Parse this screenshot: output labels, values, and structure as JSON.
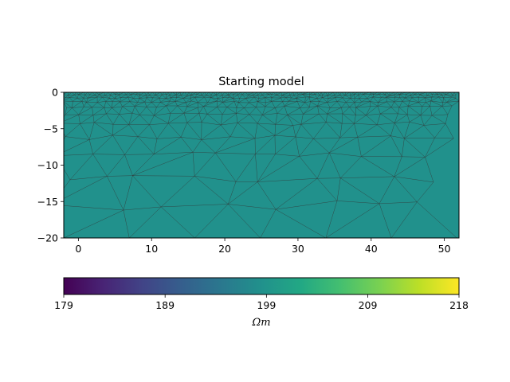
{
  "chart_data": {
    "type": "heatmap",
    "title": "Starting model",
    "xlim": [
      -2,
      52
    ],
    "ylim": [
      -20,
      0
    ],
    "x_ticks": [
      0,
      10,
      20,
      30,
      40,
      50
    ],
    "x_tick_labels": [
      "0",
      "10",
      "20",
      "30",
      "40",
      "50"
    ],
    "y_ticks": [
      0,
      -5,
      -10,
      -15,
      -20
    ],
    "y_tick_labels": [
      "0",
      "−5",
      "−10",
      "−15",
      "−20"
    ],
    "field_value": 200.6,
    "field_color": "#21918c",
    "mesh_line_color": "#333333",
    "colorbar": {
      "min": 179,
      "max": 218,
      "ticks": [
        179,
        189,
        199,
        209,
        218
      ],
      "tick_labels": [
        "179",
        "189",
        "199",
        "209",
        "218"
      ],
      "label": "Ωm",
      "colormap": "viridis"
    }
  }
}
